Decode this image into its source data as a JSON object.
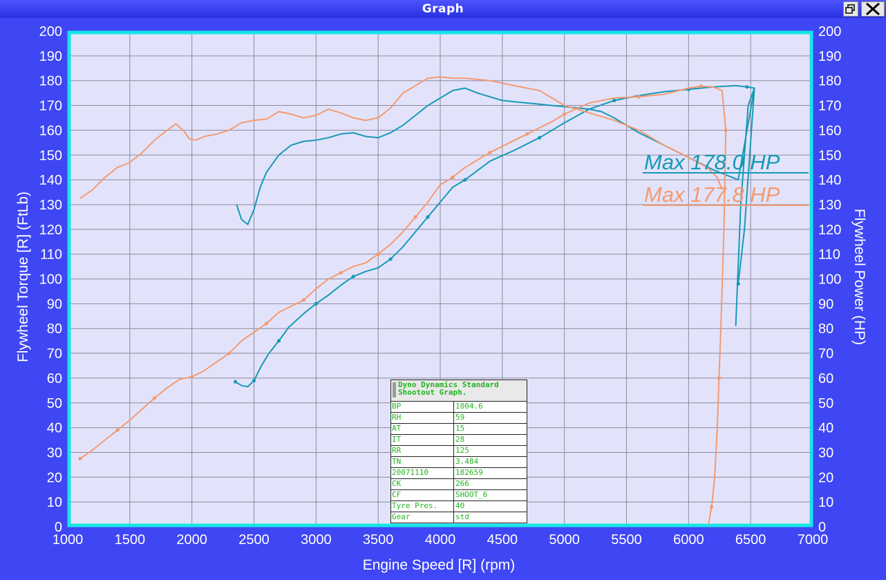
{
  "window": {
    "title": "Graph"
  },
  "colors": {
    "run1": "#1599b6",
    "run2": "#f49a70",
    "border": "#15e6e6",
    "plot_bg": "#e2e3fb",
    "background": "#3f46f3"
  },
  "icons": {
    "restore": "restore-window-icon",
    "close": "close-x-icon"
  },
  "chart_data": {
    "type": "line",
    "xlabel": "Engine Speed [R] (rpm)",
    "ylabel_left": "Flywheel Torque [R] (FtLb)",
    "ylabel_right": "Flywheel Power (HP)",
    "xlim": [
      1000,
      7000
    ],
    "ylim": [
      0,
      200
    ],
    "xticks": [
      "1000",
      "1500",
      "2000",
      "2500",
      "3000",
      "3500",
      "4000",
      "4500",
      "5000",
      "5500",
      "6000",
      "6500",
      "7000"
    ],
    "yticks": [
      "0",
      "10",
      "20",
      "30",
      "40",
      "50",
      "60",
      "70",
      "80",
      "90",
      "100",
      "110",
      "120",
      "130",
      "140",
      "150",
      "160",
      "170",
      "180",
      "190",
      "200"
    ],
    "grid": true,
    "annotations": [
      {
        "text": "Max 178.0 HP",
        "series": "run1"
      },
      {
        "text": "Max 177.8 HP",
        "series": "run2"
      }
    ],
    "series": [
      {
        "id": "run1",
        "color": "#1599b6",
        "kind": "torque",
        "x": [
          2360,
          2400,
          2450,
          2500,
          2550,
          2600,
          2700,
          2800,
          2900,
          3000,
          3100,
          3200,
          3300,
          3400,
          3500,
          3600,
          3700,
          3800,
          3900,
          4000,
          4100,
          4200,
          4300,
          4400,
          4500,
          4600,
          4700,
          4800,
          4900,
          5000,
          5100,
          5200,
          5300,
          5400,
          5600,
          5800,
          6000,
          6200,
          6400,
          6530,
          6480,
          6420,
          6380
        ],
        "y": [
          130,
          124,
          122,
          128,
          137,
          143,
          150,
          154,
          155.5,
          156,
          157,
          158.5,
          159,
          157.5,
          157,
          159,
          162,
          166,
          170,
          173,
          176,
          177,
          175,
          173.5,
          172,
          171.5,
          171,
          170.5,
          170,
          169.5,
          169,
          168.5,
          167.5,
          165,
          159,
          154,
          149,
          144,
          140,
          177,
          170,
          130,
          81
        ]
      },
      {
        "id": "run1hp",
        "color": "#1599b6",
        "kind": "power",
        "marker": true,
        "x": [
          2350,
          2400,
          2450,
          2500,
          2560,
          2620,
          2700,
          2780,
          2900,
          3000,
          3100,
          3200,
          3300,
          3400,
          3500,
          3600,
          3700,
          3800,
          3900,
          4000,
          4100,
          4200,
          4400,
          4600,
          4800,
          5000,
          5200,
          5400,
          5600,
          5800,
          6000,
          6200,
          6380,
          6470,
          6530,
          6450,
          6400
        ],
        "y": [
          58.5,
          57,
          56.5,
          59,
          65,
          70,
          75,
          80.5,
          86,
          90,
          93.5,
          97.5,
          101,
          103,
          104.5,
          108,
          113,
          119,
          125,
          131,
          137,
          140,
          147.5,
          152,
          157,
          163,
          168.5,
          172,
          174,
          175.5,
          176.5,
          177.5,
          178,
          177.5,
          177,
          120,
          98
        ]
      },
      {
        "id": "run2",
        "color": "#f49a70",
        "kind": "torque",
        "x": [
          1100,
          1200,
          1300,
          1400,
          1500,
          1600,
          1700,
          1800,
          1870,
          1930,
          1980,
          2030,
          2100,
          2200,
          2300,
          2400,
          2500,
          2600,
          2700,
          2800,
          2900,
          3000,
          3100,
          3200,
          3300,
          3400,
          3500,
          3600,
          3700,
          3800,
          3900,
          4000,
          4100,
          4200,
          4300,
          4400,
          4500,
          4600,
          4700,
          4800,
          4900,
          5000,
          5200,
          5400,
          5600,
          5800,
          6000,
          6150,
          6230,
          6270
        ],
        "y": [
          132.5,
          136,
          141,
          145,
          147,
          151,
          156,
          160,
          162.5,
          160,
          156.5,
          156,
          157.5,
          158.5,
          160,
          163,
          164,
          164.5,
          167.5,
          166.5,
          165,
          166,
          168.5,
          167,
          165,
          164,
          165,
          169,
          175,
          178,
          181,
          181.5,
          181,
          181,
          180.5,
          180,
          179,
          178,
          177,
          176,
          173,
          170,
          167,
          164,
          160,
          154,
          149,
          145,
          141,
          136
        ]
      },
      {
        "id": "run2hp",
        "color": "#f49a70",
        "kind": "power",
        "marker": true,
        "x": [
          1100,
          1200,
          1300,
          1400,
          1500,
          1600,
          1700,
          1800,
          1900,
          2000,
          2100,
          2200,
          2300,
          2400,
          2500,
          2600,
          2700,
          2800,
          2900,
          3000,
          3100,
          3200,
          3300,
          3400,
          3500,
          3600,
          3700,
          3800,
          3900,
          4000,
          4100,
          4200,
          4300,
          4400,
          4500,
          4600,
          4700,
          4800,
          4900,
          5000,
          5200,
          5400,
          5600,
          5800,
          6000,
          6100,
          6200,
          6270,
          6300,
          6285,
          6260,
          6245,
          6230,
          6210,
          6185,
          6160
        ],
        "y": [
          27.5,
          31,
          35,
          39,
          43,
          47.5,
          52,
          56,
          59.5,
          60.5,
          63,
          66.5,
          70,
          75,
          78.5,
          82,
          86.5,
          89,
          91.5,
          96,
          100,
          102.5,
          105,
          106.5,
          110,
          114,
          119,
          125,
          131,
          138,
          141,
          145,
          148,
          151,
          153.5,
          156,
          158.5,
          161,
          163.5,
          166.5,
          171,
          173,
          173.5,
          174.5,
          177,
          177.8,
          177.5,
          176,
          160,
          120,
          80,
          60,
          39,
          20,
          8,
          1
        ]
      }
    ]
  },
  "info_table": {
    "title_line1": "Dyno Dynamics Standard",
    "title_line2": "Shootout Graph.",
    "rows": [
      {
        "key": "BP",
        "value": "1004.6"
      },
      {
        "key": "RH",
        "value": "59"
      },
      {
        "key": "AT",
        "value": "15"
      },
      {
        "key": "IT",
        "value": "28"
      },
      {
        "key": "RR",
        "value": "125"
      },
      {
        "key": "TN",
        "value": "3.484"
      },
      {
        "key": "20071110",
        "value": "182659"
      },
      {
        "key": "CK",
        "value": "266"
      },
      {
        "key": "CF",
        "value": "SHOOT_6"
      },
      {
        "key": "Tyre Pres.",
        "value": "40"
      },
      {
        "key": "Gear",
        "value": "std"
      }
    ]
  }
}
